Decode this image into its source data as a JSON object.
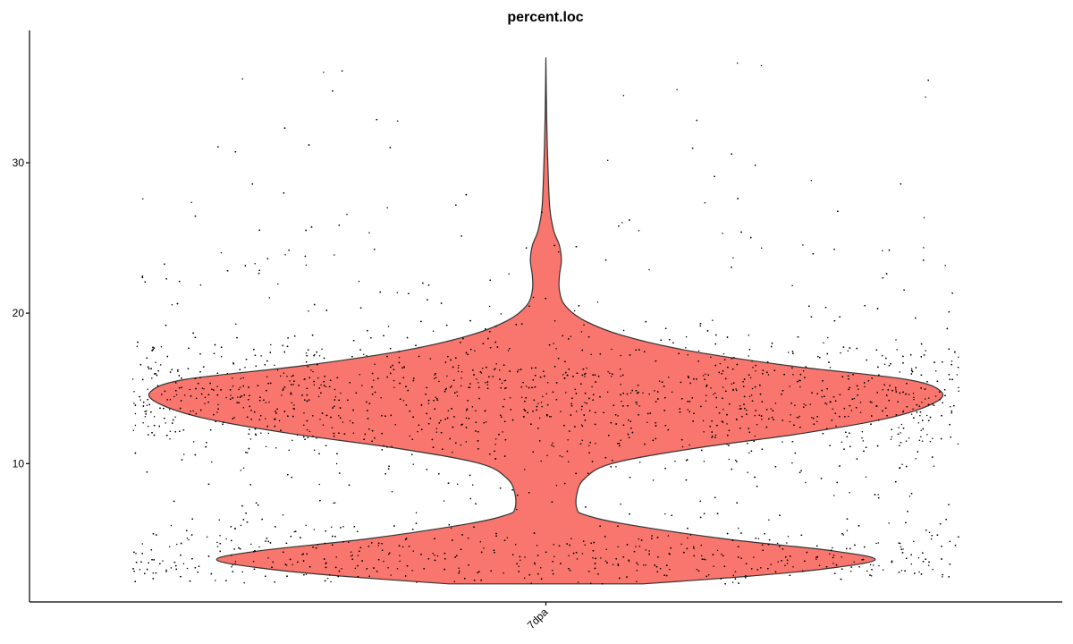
{
  "chart_data": {
    "type": "violin",
    "title": "percent.loc",
    "xlabel": "",
    "ylabel": "",
    "categories": [
      "7dpa"
    ],
    "ylim": [
      0.8,
      38.8
    ],
    "y_ticks": [
      10,
      20,
      30
    ],
    "y_tick_labels": [
      "10",
      "20",
      "30"
    ],
    "grid": false,
    "legend": "none",
    "fill_color": "#F8766D",
    "outline_color": "#333333",
    "point_color": "#000000",
    "series": [
      {
        "category": "7dpa",
        "density_profile": [
          {
            "y": 2.0,
            "w": 0.25
          },
          {
            "y": 2.5,
            "w": 0.52
          },
          {
            "y": 3.0,
            "w": 0.72
          },
          {
            "y": 3.6,
            "w": 0.85
          },
          {
            "y": 4.2,
            "w": 0.74
          },
          {
            "y": 5.0,
            "w": 0.46
          },
          {
            "y": 6.0,
            "w": 0.2
          },
          {
            "y": 6.6,
            "w": 0.1
          },
          {
            "y": 7.0,
            "w": 0.08
          },
          {
            "y": 8.0,
            "w": 0.08
          },
          {
            "y": 9.0,
            "w": 0.1
          },
          {
            "y": 10.0,
            "w": 0.17
          },
          {
            "y": 11.0,
            "w": 0.38
          },
          {
            "y": 12.0,
            "w": 0.66
          },
          {
            "y": 13.0,
            "w": 0.88
          },
          {
            "y": 14.0,
            "w": 1.0
          },
          {
            "y": 14.8,
            "w": 1.02
          },
          {
            "y": 15.6,
            "w": 0.93
          },
          {
            "y": 16.5,
            "w": 0.63
          },
          {
            "y": 17.5,
            "w": 0.37
          },
          {
            "y": 18.5,
            "w": 0.2
          },
          {
            "y": 19.5,
            "w": 0.1
          },
          {
            "y": 20.5,
            "w": 0.05
          },
          {
            "y": 21.5,
            "w": 0.035
          },
          {
            "y": 22.5,
            "w": 0.035
          },
          {
            "y": 23.5,
            "w": 0.04
          },
          {
            "y": 24.5,
            "w": 0.035
          },
          {
            "y": 25.5,
            "w": 0.02
          },
          {
            "y": 27.0,
            "w": 0.01
          },
          {
            "y": 30.0,
            "w": 0.005
          },
          {
            "y": 33.0,
            "w": 0.002
          },
          {
            "y": 37.0,
            "w": 0.0
          }
        ],
        "max_value": 37.0,
        "min_value": 2.0,
        "median": 13.8
      }
    ],
    "jitter_points": {
      "count": 5200,
      "x_spread": 0.8,
      "min": 2.0,
      "max": 37.0
    }
  }
}
